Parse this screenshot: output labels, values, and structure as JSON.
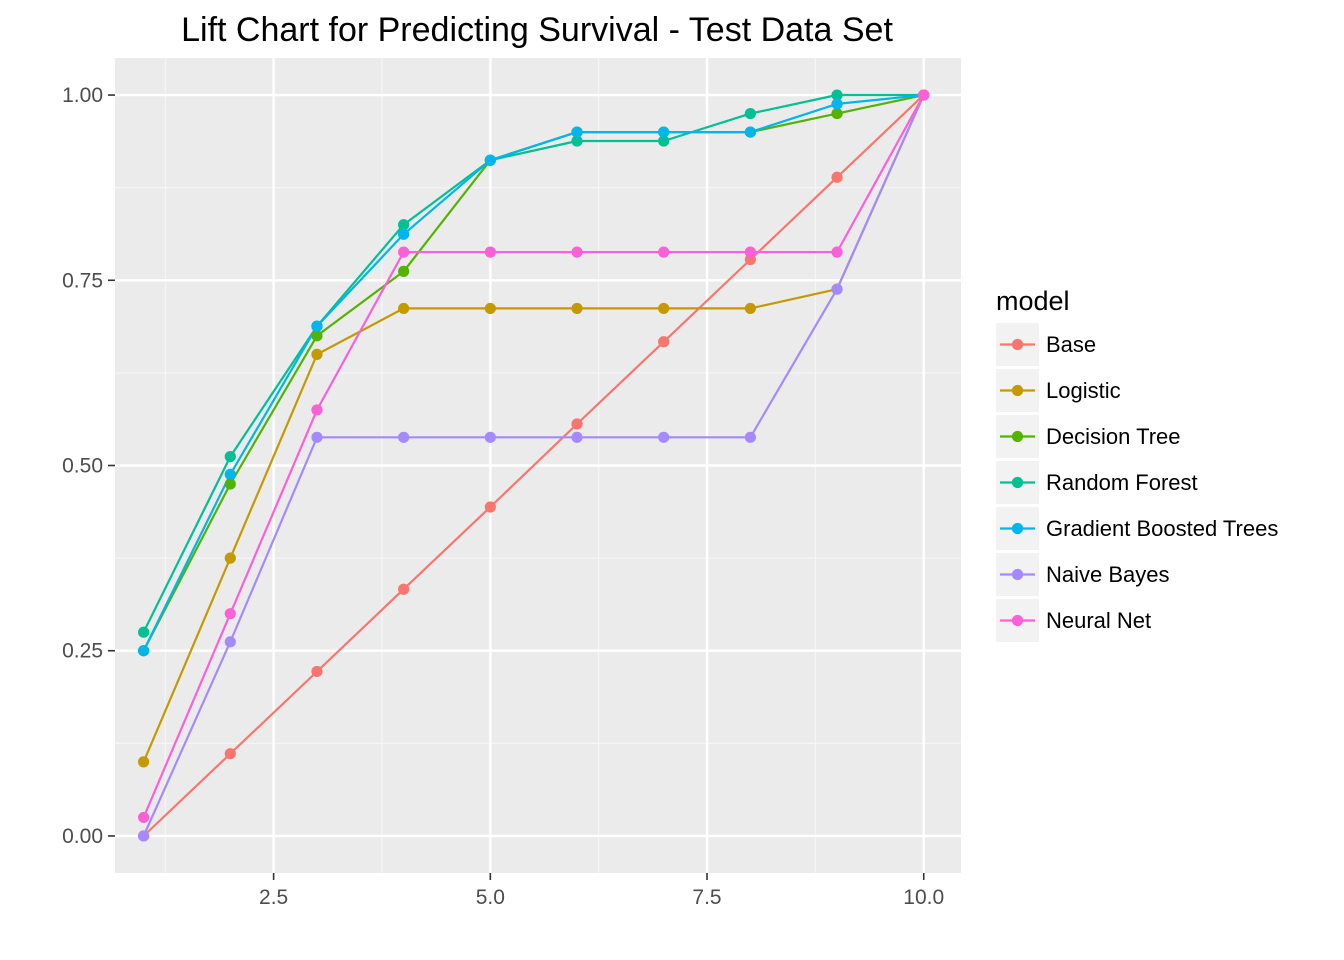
{
  "chart_data": {
    "type": "line",
    "title": "Lift Chart for Predicting Survival - Test Data Set",
    "xlabel": "",
    "ylabel": "",
    "xlim": [
      0.67,
      10.43
    ],
    "ylim": [
      -0.05,
      1.05
    ],
    "x_ticks": [
      2.5,
      5.0,
      7.5,
      10.0
    ],
    "x_tick_labels": [
      "2.5",
      "5.0",
      "7.5",
      "10.0"
    ],
    "y_ticks": [
      0,
      0.25,
      0.5,
      0.75,
      1.0
    ],
    "y_tick_labels": [
      "0.00",
      "0.25",
      "0.50",
      "0.75",
      "1.00"
    ],
    "grid": true,
    "legend_title": "model",
    "legend_position": "right",
    "x": [
      1,
      2,
      3,
      4,
      5,
      6,
      7,
      8,
      9,
      10
    ],
    "series": [
      {
        "name": "Base",
        "color": "#F8766D",
        "values": [
          0.0,
          0.111,
          0.222,
          0.333,
          0.444,
          0.556,
          0.667,
          0.778,
          0.889,
          1.0
        ]
      },
      {
        "name": "Logistic",
        "color": "#C49A00",
        "values": [
          0.1,
          0.375,
          0.65,
          0.712,
          0.712,
          0.712,
          0.712,
          0.712,
          0.738,
          1.0
        ]
      },
      {
        "name": "Decision Tree",
        "color": "#53B400",
        "values": [
          0.25,
          0.475,
          0.675,
          0.762,
          0.912,
          0.95,
          0.95,
          0.95,
          0.975,
          1.0
        ]
      },
      {
        "name": "Random Forest",
        "color": "#00C094",
        "values": [
          0.275,
          0.512,
          0.688,
          0.825,
          0.912,
          0.938,
          0.938,
          0.975,
          1.0,
          1.0
        ]
      },
      {
        "name": "Gradient Boosted Trees",
        "color": "#00B6EB",
        "values": [
          0.25,
          0.488,
          0.688,
          0.812,
          0.912,
          0.95,
          0.95,
          0.95,
          0.988,
          1.0
        ]
      },
      {
        "name": "Naive Bayes",
        "color": "#A58AFF",
        "values": [
          0.0,
          0.262,
          0.538,
          0.538,
          0.538,
          0.538,
          0.538,
          0.538,
          0.738,
          1.0
        ]
      },
      {
        "name": "Neural Net",
        "color": "#FB61D7",
        "values": [
          0.025,
          0.3,
          0.575,
          0.788,
          0.788,
          0.788,
          0.788,
          0.788,
          0.788,
          1.0
        ]
      }
    ]
  }
}
